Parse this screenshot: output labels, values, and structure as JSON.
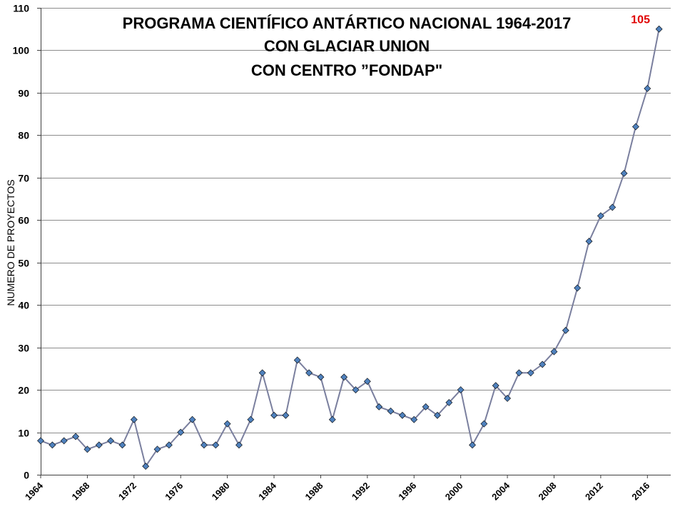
{
  "chart_data": {
    "type": "line",
    "title_lines": [
      "PROGRAMA CIENTÍFICO ANTÁRTICO NACIONAL 1964-2017",
      "CON GLACIAR UNION",
      "CON CENTRO ”FONDAP\""
    ],
    "ylabel": "NUMERO DE PROYECTOS",
    "xlabel": "",
    "ylim": [
      0,
      110
    ],
    "yticks": [
      0,
      10,
      20,
      30,
      40,
      50,
      60,
      70,
      80,
      90,
      100,
      110
    ],
    "xlim": [
      1964,
      2018
    ],
    "xticks": [
      1964,
      1968,
      1972,
      1976,
      1980,
      1984,
      1988,
      1992,
      1996,
      2000,
      2004,
      2008,
      2012,
      2016
    ],
    "grid": true,
    "annotation": {
      "text": "105",
      "color": "#e00000"
    },
    "series": [
      {
        "color": "#7a7f9e",
        "marker_color": "#4f81bd",
        "x": [
          1964,
          1965,
          1966,
          1967,
          1968,
          1969,
          1970,
          1971,
          1972,
          1973,
          1974,
          1975,
          1976,
          1977,
          1978,
          1979,
          1980,
          1981,
          1982,
          1983,
          1984,
          1985,
          1986,
          1987,
          1988,
          1989,
          1990,
          1991,
          1992,
          1993,
          1994,
          1995,
          1996,
          1997,
          1998,
          1999,
          2000,
          2001,
          2002,
          2003,
          2004,
          2005,
          2006,
          2007,
          2008,
          2009,
          2010,
          2011,
          2012,
          2013,
          2014,
          2015,
          2016,
          2017
        ],
        "values": [
          8,
          7,
          8,
          9,
          6,
          7,
          8,
          7,
          13,
          2,
          6,
          7,
          10,
          13,
          7,
          7,
          12,
          7,
          13,
          24,
          14,
          14,
          27,
          24,
          23,
          13,
          23,
          20,
          22,
          16,
          15,
          14,
          13,
          16,
          14,
          17,
          20,
          7,
          12,
          21,
          18,
          24,
          24,
          26,
          29,
          34,
          44,
          55,
          61,
          63,
          71,
          82,
          91,
          105
        ]
      }
    ]
  }
}
